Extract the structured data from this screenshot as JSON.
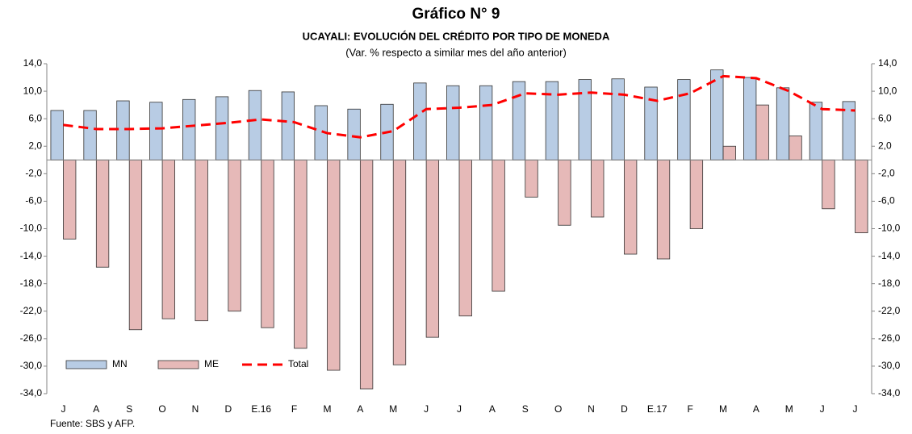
{
  "chart_data": {
    "type": "bar",
    "title": "Gráfico N° 9",
    "subtitle": "UCAYALI: EVOLUCIÓN DEL CRÉDITO POR TIPO DE MONEDA",
    "subtitle2": "(Var. % respecto a similar mes del año anterior)",
    "source": "Fuente: SBS y AFP.",
    "categories": [
      "J",
      "A",
      "S",
      "O",
      "N",
      "D",
      "E.16",
      "F",
      "M",
      "A",
      "M",
      "J",
      "J",
      "A",
      "S",
      "O",
      "N",
      "D",
      "E.17",
      "F",
      "M",
      "A",
      "M",
      "J",
      "J"
    ],
    "series": [
      {
        "name": "MN",
        "type": "bar",
        "color": "#b8cce4",
        "values": [
          7.2,
          7.2,
          8.6,
          8.4,
          8.8,
          9.2,
          10.1,
          9.9,
          7.9,
          7.4,
          8.1,
          11.2,
          10.8,
          10.8,
          11.4,
          11.4,
          11.7,
          11.8,
          10.6,
          11.7,
          13.1,
          12.0,
          10.5,
          8.4,
          8.5
        ]
      },
      {
        "name": "ME",
        "type": "bar",
        "color": "#e6b9b8",
        "values": [
          -11.5,
          -15.6,
          -24.7,
          -23.1,
          -23.4,
          -22.0,
          -24.4,
          -27.4,
          -30.6,
          -33.3,
          -29.8,
          -25.8,
          -22.7,
          -19.1,
          -5.4,
          -9.5,
          -8.3,
          -13.7,
          -14.4,
          -10.0,
          2.0,
          8.0,
          3.5,
          -7.1,
          -10.6
        ]
      },
      {
        "name": "Total",
        "type": "line",
        "color": "#ff0000",
        "values": [
          5.1,
          4.5,
          4.5,
          4.6,
          5.0,
          5.4,
          5.9,
          5.5,
          3.9,
          3.3,
          4.2,
          7.4,
          7.6,
          8.0,
          9.7,
          9.5,
          9.8,
          9.5,
          8.6,
          9.7,
          12.2,
          11.9,
          10.0,
          7.4,
          7.2
        ]
      }
    ],
    "ylim": [
      -34,
      14
    ],
    "yticks": [
      {
        "value": 14,
        "label": "14,0"
      },
      {
        "value": 10,
        "label": "10,0"
      },
      {
        "value": 6,
        "label": "6,0"
      },
      {
        "value": 2,
        "label": "2,0"
      },
      {
        "value": -2,
        "label": "-2,0"
      },
      {
        "value": -6,
        "label": "-6,0"
      },
      {
        "value": -10,
        "label": "-10,0"
      },
      {
        "value": -14,
        "label": "-14,0"
      },
      {
        "value": -18,
        "label": "-18,0"
      },
      {
        "value": -22,
        "label": "-22,0"
      },
      {
        "value": -26,
        "label": "-26,0"
      },
      {
        "value": -30,
        "label": "-30,0"
      },
      {
        "value": -34,
        "label": "-34,0"
      }
    ],
    "grid": false
  }
}
